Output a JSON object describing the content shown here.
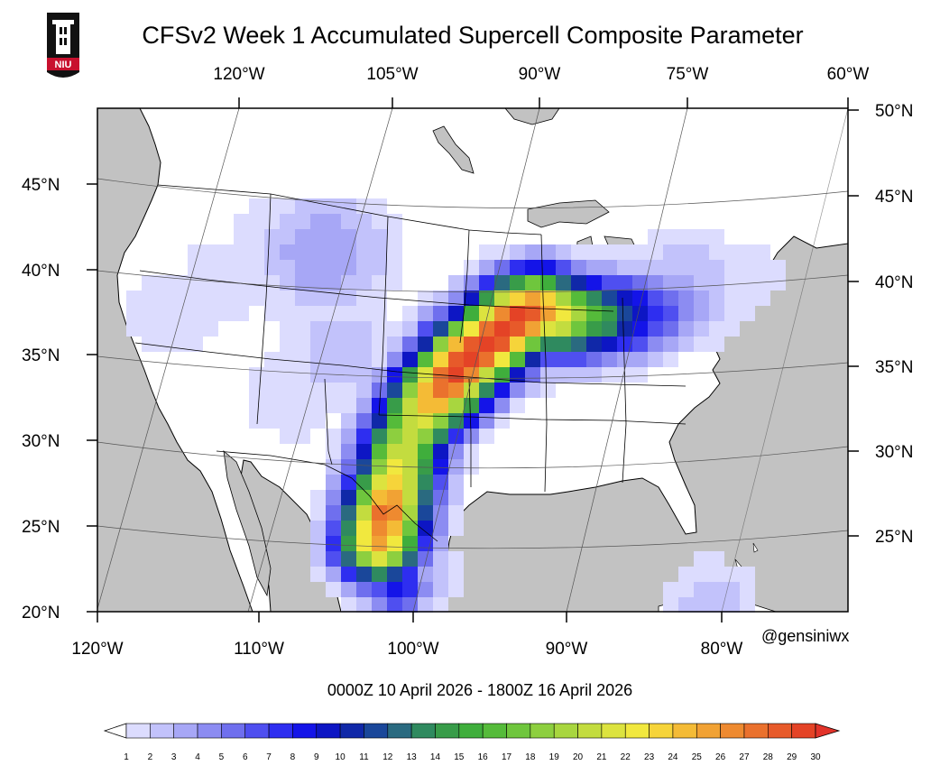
{
  "title": "CFSv2 Week 1 Accumulated Supercell Composite Parameter",
  "logo": {
    "text": "NIU",
    "icon": "university-tower-logo",
    "colors": {
      "body": "#111111",
      "band": "#c8102e"
    }
  },
  "period": "0000Z 10  April  2026   - 1800Z 16  April  2026",
  "credit": "@gensiniwx",
  "axes": {
    "top_lon_labels": [
      "120°W",
      "105°W",
      "90°W",
      "75°W",
      "60°W"
    ],
    "bottom_lon_labels": [
      "120°W",
      "110°W",
      "100°W",
      "90°W",
      "80°W"
    ],
    "left_lat_labels": [
      "45°N",
      "40°N",
      "35°N",
      "30°N",
      "25°N",
      "20°N"
    ],
    "right_lat_labels": [
      "50°N",
      "45°N",
      "40°N",
      "35°N",
      "30°N",
      "25°N"
    ]
  },
  "colorbar": {
    "labels": [
      "1",
      "2",
      "3",
      "4",
      "5",
      "6",
      "7",
      "8",
      "9",
      "10",
      "11",
      "12",
      "13",
      "14",
      "15",
      "16",
      "17",
      "18",
      "19",
      "20",
      "21",
      "22",
      "23",
      "24",
      "25",
      "26",
      "27",
      "28",
      "29",
      "30"
    ],
    "colors": [
      "#dcdcfe",
      "#c2c2fb",
      "#a7a7f6",
      "#8c8cf2",
      "#6f6fee",
      "#4f4ff0",
      "#2e2ef0",
      "#1414e8",
      "#0d16c4",
      "#1028a8",
      "#1a479a",
      "#2a6a80",
      "#2f8a5f",
      "#389c49",
      "#3fae3c",
      "#55bb3a",
      "#6fc63d",
      "#8dcf3f",
      "#a8d63f",
      "#c3dc3f",
      "#dce33f",
      "#f1e83e",
      "#f6d43a",
      "#f4bb36",
      "#f1a234",
      "#ee8a30",
      "#ea712d",
      "#e75a2a",
      "#e44326",
      "#e33125"
    ],
    "over_color": "#e2332a",
    "under_color": "#ffffff"
  },
  "map_colors": {
    "land": "#ffffff",
    "ocean": "#c2c2c2",
    "border": "#000000"
  }
}
